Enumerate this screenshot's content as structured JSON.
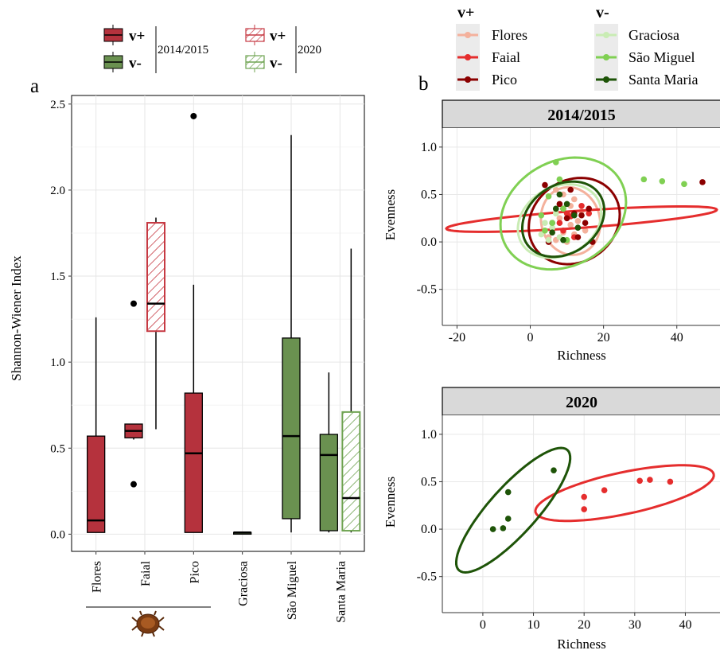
{
  "figure": {
    "panel_a_label": "a",
    "panel_b_label": "b"
  },
  "legend_a": {
    "v_plus": "v+",
    "v_minus": "v-",
    "period_1": "2014/2015",
    "period_2": "2020"
  },
  "legend_b": {
    "v_plus_title": "v+",
    "v_minus_title": "v-",
    "v_plus_items": [
      "Flores",
      "Faial",
      "Pico"
    ],
    "v_minus_items": [
      "Graciosa",
      "São Miguel",
      "Santa Maria"
    ]
  },
  "colors": {
    "vplus_fill": "#b5323d",
    "vminus_fill": "#6a9150",
    "vplus_2020_edge": "#c63a43",
    "vminus_2020_edge": "#6fa352",
    "Flores": "#f4b19c",
    "Faial": "#e52d2d",
    "Pico": "#8b0000",
    "Graciosa": "#c9ecb4",
    "São Miguel": "#80d053",
    "Santa Maria": "#1e5408"
  },
  "icons": {
    "bug": "mite-icon"
  },
  "chart_data": [
    {
      "type": "boxplot",
      "ylabel": "Shannon-Wiener Index",
      "ylim": [
        -0.1,
        2.55
      ],
      "yticks": [
        "0.0",
        "0.5",
        "1.0",
        "1.5",
        "2.0",
        "2.5"
      ],
      "categories": [
        "Flores",
        "Faial",
        "Pico",
        "Graciosa",
        "São Miguel",
        "Santa Maria"
      ],
      "grid": true,
      "boxes": [
        {
          "category": "Flores",
          "period": "2014/2015",
          "group": "v+",
          "min": 0.01,
          "q1": 0.01,
          "median": 0.08,
          "q3": 0.57,
          "max": 1.26,
          "outliers": []
        },
        {
          "category": "Faial",
          "period": "2014/2015",
          "group": "v+",
          "min": 0.55,
          "q1": 0.56,
          "median": 0.6,
          "q3": 0.64,
          "max": 0.64,
          "outliers": [
            1.34,
            0.29
          ]
        },
        {
          "category": "Faial",
          "period": "2020",
          "group": "v+",
          "min": 0.61,
          "q1": 1.18,
          "median": 1.34,
          "q3": 1.81,
          "max": 1.84,
          "outliers": []
        },
        {
          "category": "Pico",
          "period": "2014/2015",
          "group": "v+",
          "min": 0.01,
          "q1": 0.01,
          "median": 0.47,
          "q3": 0.82,
          "max": 1.45,
          "outliers": [
            2.43
          ]
        },
        {
          "category": "Graciosa",
          "period": "2014/2015",
          "group": "v-",
          "min": 0.0,
          "q1": 0.0,
          "median": 0.01,
          "q3": 0.01,
          "max": 0.01,
          "outliers": []
        },
        {
          "category": "São Miguel",
          "period": "2014/2015",
          "group": "v-",
          "min": 0.01,
          "q1": 0.09,
          "median": 0.57,
          "q3": 1.14,
          "max": 2.32,
          "outliers": []
        },
        {
          "category": "Santa Maria",
          "period": "2014/2015",
          "group": "v-",
          "min": 0.01,
          "q1": 0.02,
          "median": 0.46,
          "q3": 0.58,
          "max": 0.94,
          "outliers": []
        },
        {
          "category": "Santa Maria",
          "period": "2020",
          "group": "v-",
          "min": 0.01,
          "q1": 0.02,
          "median": 0.21,
          "q3": 0.71,
          "max": 1.66,
          "outliers": []
        }
      ]
    },
    {
      "type": "scatter",
      "title": "2014/2015",
      "xlabel": "Richness",
      "ylabel": "Evenness",
      "xlim": [
        -24,
        52
      ],
      "ylim": [
        -0.88,
        1.2
      ],
      "xticks": [
        "-20",
        "0",
        "20",
        "40"
      ],
      "yticks": [
        "-0.5",
        "0.0",
        "0.5",
        "1.0"
      ],
      "grid": true,
      "series": [
        {
          "name": "Flores",
          "points": [
            [
              5,
              0.05
            ],
            [
              7,
              0.02
            ],
            [
              9,
              0.1
            ],
            [
              11,
              0.38
            ],
            [
              12,
              0.45
            ],
            [
              13,
              0.22
            ],
            [
              10,
              0.0
            ],
            [
              8,
              0.25
            ],
            [
              6,
              0.1
            ],
            [
              14,
              0.32
            ],
            [
              11,
              0.18
            ],
            [
              9,
              0.5
            ],
            [
              15,
              0.12
            ],
            [
              12,
              0.08
            ],
            [
              7,
              0.55
            ]
          ],
          "ellipse": {
            "cx": 11,
            "cy": 0.22,
            "rx": 8,
            "ry": 0.36,
            "angle": 15
          }
        },
        {
          "name": "Faial",
          "points": [
            [
              8,
              0.2
            ],
            [
              10,
              0.3
            ],
            [
              12,
              0.05
            ],
            [
              14,
              0.38
            ],
            [
              9,
              0.12
            ],
            [
              16,
              0.3
            ],
            [
              11,
              0.27
            ]
          ],
          "ellipse": {
            "cx": 14,
            "cy": 0.24,
            "rx": 37,
            "ry": 0.09,
            "angle": 4
          }
        },
        {
          "name": "Pico",
          "points": [
            [
              4,
              0.6
            ],
            [
              6,
              0.2
            ],
            [
              9,
              0.35
            ],
            [
              10,
              0.25
            ],
            [
              12,
              0.3
            ],
            [
              13,
              0.05
            ],
            [
              15,
              0.2
            ],
            [
              17,
              0.0
            ],
            [
              5,
              0.0
            ],
            [
              11,
              0.55
            ],
            [
              8,
              0.4
            ],
            [
              14,
              0.28
            ],
            [
              16,
              0.35
            ],
            [
              47,
              0.63
            ]
          ],
          "ellipse": {
            "cx": 12,
            "cy": 0.22,
            "rx": 13,
            "ry": 0.43,
            "angle": 35
          }
        },
        {
          "name": "Graciosa",
          "points": [
            [
              3,
              0.08
            ],
            [
              5,
              0.02
            ],
            [
              6,
              0.15
            ],
            [
              7,
              0.3
            ],
            [
              4,
              0.2
            ],
            [
              8,
              0.05
            ]
          ],
          "ellipse": {
            "cx": 8,
            "cy": 0.22,
            "rx": 12,
            "ry": 0.36,
            "angle": 30
          }
        },
        {
          "name": "São Miguel",
          "points": [
            [
              7,
              0.84
            ],
            [
              6,
              0.2
            ],
            [
              5,
              0.48
            ],
            [
              8,
              0.66
            ],
            [
              31,
              0.66
            ],
            [
              36,
              0.64
            ],
            [
              42,
              0.61
            ],
            [
              9,
              0.35
            ],
            [
              4,
              0.12
            ],
            [
              10,
              0.02
            ],
            [
              3,
              0.28
            ]
          ],
          "ellipse": {
            "cx": 9,
            "cy": 0.3,
            "rx": 18,
            "ry": 0.55,
            "angle": 30
          }
        },
        {
          "name": "Santa Maria",
          "points": [
            [
              8,
              0.5
            ],
            [
              10,
              0.4
            ],
            [
              12,
              0.28
            ],
            [
              6,
              0.1
            ],
            [
              13,
              0.15
            ],
            [
              9,
              0.02
            ],
            [
              7,
              0.35
            ]
          ],
          "ellipse": {
            "cx": 9,
            "cy": 0.24,
            "rx": 12,
            "ry": 0.36,
            "angle": 35
          }
        }
      ]
    },
    {
      "type": "scatter",
      "title": "2020",
      "xlabel": "Richness",
      "ylabel": "Evenness",
      "xlim": [
        -8,
        47
      ],
      "ylim": [
        -0.88,
        1.2
      ],
      "xticks": [
        "0",
        "10",
        "20",
        "30",
        "40"
      ],
      "yticks": [
        "-0.5",
        "0.0",
        "0.5",
        "1.0"
      ],
      "grid": true,
      "series": [
        {
          "name": "Faial",
          "points": [
            [
              20,
              0.34
            ],
            [
              20,
              0.21
            ],
            [
              24,
              0.41
            ],
            [
              31,
              0.51
            ],
            [
              33,
              0.52
            ],
            [
              37,
              0.5
            ]
          ],
          "ellipse": {
            "cx": 28,
            "cy": 0.38,
            "rx": 18,
            "ry": 0.22,
            "angle": 12
          }
        },
        {
          "name": "Santa Maria",
          "points": [
            [
              2,
              0.0
            ],
            [
              4,
              0.01
            ],
            [
              5,
              0.39
            ],
            [
              5,
              0.11
            ],
            [
              14,
              0.62
            ]
          ],
          "ellipse": {
            "cx": 6,
            "cy": 0.2,
            "rx": 16,
            "ry": 0.25,
            "angle": 48
          }
        }
      ]
    }
  ]
}
